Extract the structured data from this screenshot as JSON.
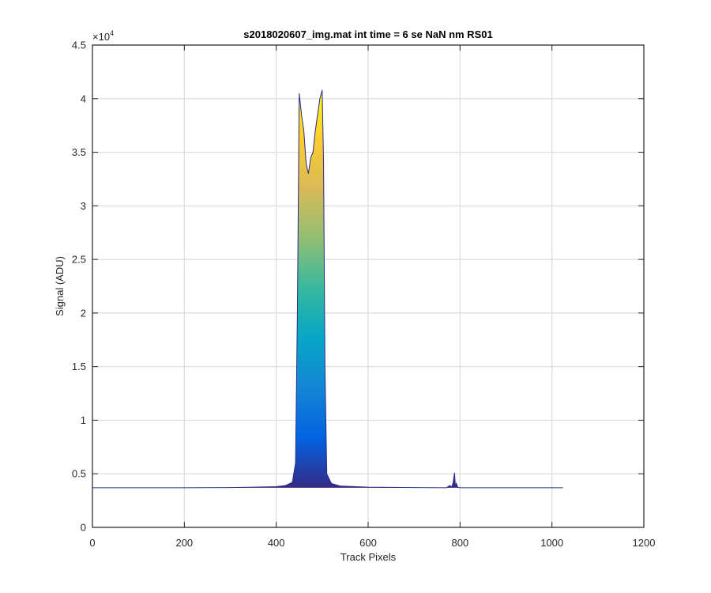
{
  "chart_data": {
    "type": "area",
    "title": "s2018020607_img.mat int time = 6 se  NaN nm RS01",
    "xlabel": "Track Pixels",
    "ylabel": "Signal (ADU)",
    "xlim": [
      0,
      1200
    ],
    "ylim": [
      0,
      45000
    ],
    "x_ticks": [
      "0",
      "200",
      "400",
      "600",
      "800",
      "1000",
      "1200"
    ],
    "y_ticks": [
      "0",
      "0.5",
      "1",
      "1.5",
      "2",
      "2.5",
      "3",
      "3.5",
      "4",
      "4.5"
    ],
    "y_exponent_label": "×10",
    "y_exponent": "4",
    "grid": true,
    "colormap": "parula",
    "colormap_colors": [
      "#352a87",
      "#0363e1",
      "#1485d4",
      "#06a7c6",
      "#38b99e",
      "#92bf73",
      "#d9ba56",
      "#fcce2e",
      "#f9fb0e"
    ],
    "series": [
      {
        "x": [
          0,
          100,
          200,
          300,
          350,
          400,
          420,
          435,
          442,
          446,
          450,
          455,
          460,
          465,
          470,
          475,
          480,
          485,
          490,
          495,
          500,
          503,
          506,
          510,
          520,
          540,
          600,
          700,
          770,
          778,
          782,
          785,
          788,
          790,
          792,
          795,
          800,
          900,
          1000,
          1024
        ],
        "values": [
          3700,
          3700,
          3700,
          3720,
          3750,
          3800,
          3900,
          4200,
          6000,
          20000,
          40500,
          38500,
          37000,
          34000,
          33000,
          34500,
          35000,
          37000,
          38500,
          40000,
          40800,
          34000,
          15000,
          5000,
          4100,
          3850,
          3750,
          3720,
          3700,
          3900,
          3750,
          4200,
          5100,
          3800,
          4100,
          3750,
          3700,
          3700,
          3700,
          3700
        ]
      }
    ]
  }
}
